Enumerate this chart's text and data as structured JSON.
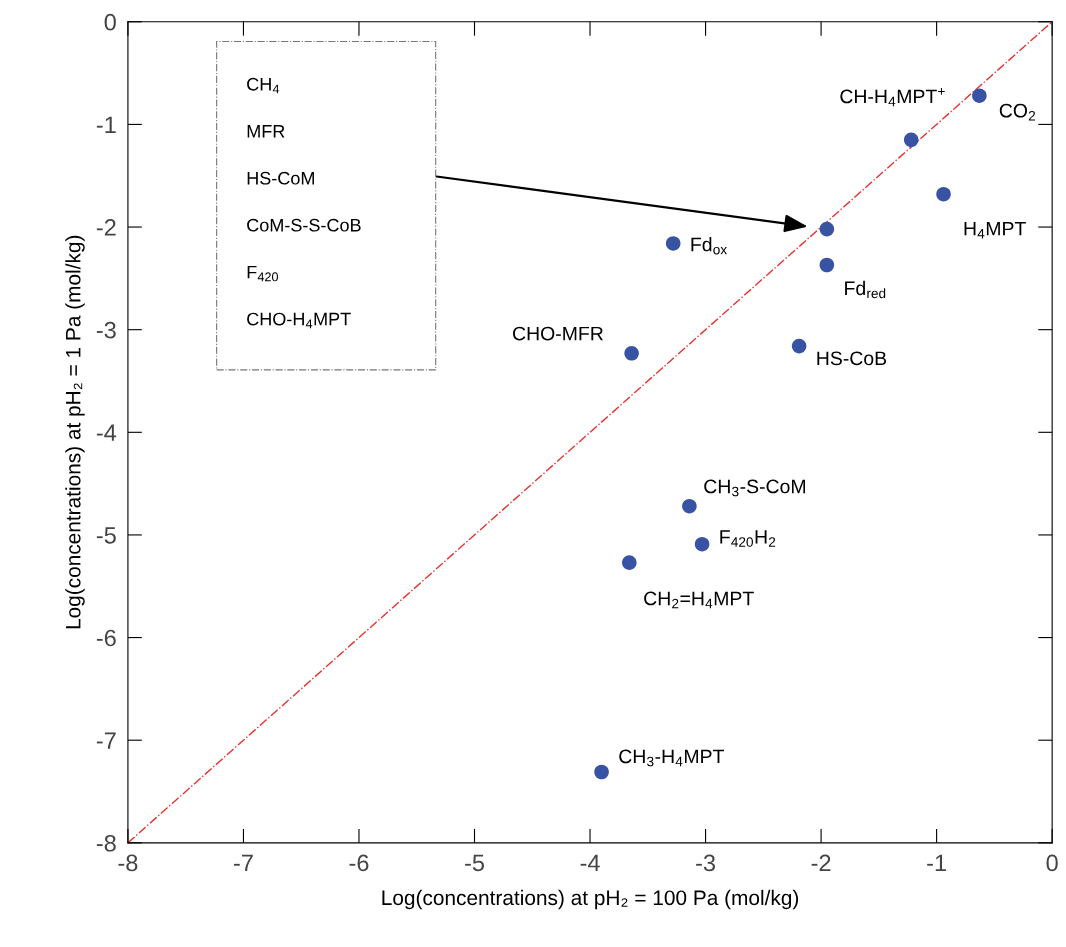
{
  "chart_data": {
    "type": "scatter",
    "xlabel": "Log(concentrations) at pH₂ = 100 Pa (mol/kg)",
    "ylabel": "Log(concentrations) at pH₂ = 1 Pa (mol/kg)",
    "xlim": [
      -8,
      0
    ],
    "ylim": [
      -8,
      0
    ],
    "xticks": [
      -8,
      -7,
      -6,
      -5,
      -4,
      -3,
      -2,
      -1,
      0
    ],
    "yticks": [
      -8,
      -7,
      -6,
      -5,
      -4,
      -3,
      -2,
      -1,
      0
    ],
    "grid": false,
    "series": [
      {
        "color": "#3953a4",
        "marker": "circle",
        "x": [
          -0.63,
          -1.22,
          -0.94,
          -1.95,
          -3.28,
          -1.95,
          -3.64,
          -2.19,
          -3.14,
          -3.03,
          -3.66,
          -3.9
        ],
        "values": [
          -0.72,
          -1.15,
          -1.68,
          -2.02,
          -2.16,
          -2.37,
          -3.23,
          -3.16,
          -4.72,
          -5.09,
          -5.27,
          -7.31
        ]
      },
      {
        "type": "line",
        "color": "#e8312f",
        "line_style": "dashdot",
        "x": [
          -8,
          0
        ],
        "values": [
          -8,
          0
        ]
      }
    ],
    "annotations": [
      {
        "text": "CO$_{2}$",
        "x": -0.63,
        "y": -0.72
      },
      {
        "text": "CH-H$_{4}$MPT$^{+}$",
        "x": -1.22,
        "y": -1.15
      },
      {
        "text": "H$_{4}$MPT",
        "x": -0.94,
        "y": -1.68
      },
      "CH$_{4}$",
      "MFR",
      "HS-CoM",
      "CoM-S-S-CoB",
      "F$_{420}$",
      "CHO-H$_{4}$MPT",
      {
        "text": "Fd$_{ox}$",
        "x": -3.28,
        "y": -2.16
      },
      {
        "text": "Fd$_{red}$",
        "x": -1.95,
        "y": -2.37
      },
      {
        "text": "CHO-MFR",
        "x": -3.64,
        "y": -3.23
      },
      {
        "text": "HS-CoB",
        "x": -2.19,
        "y": -3.16
      },
      {
        "text": "CH$_{3}$-S-CoM",
        "x": -3.14,
        "y": -4.72
      },
      {
        "text": "F$_{420}$H$_{2}$",
        "x": -3.03,
        "y": -5.09
      },
      {
        "text": "CH$_{2}$=H$_{4}$MPT",
        "x": -3.66,
        "y": -5.27
      },
      {
        "text": "CH$_{3}$-H$_{4}$MPT",
        "x": -3.9,
        "y": -7.31
      }
    ]
  }
}
